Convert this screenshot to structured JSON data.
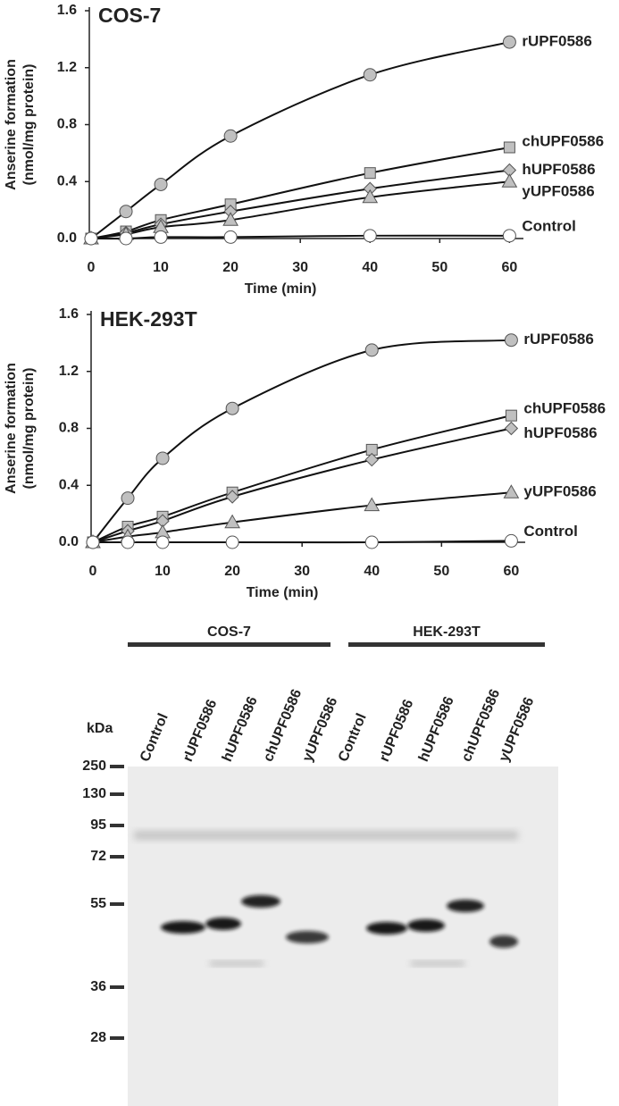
{
  "chart_data": [
    {
      "type": "line",
      "title": "COS-7",
      "xlabel": "Time (min)",
      "ylabel": [
        "Anserine formation",
        "(nmol/mg protein)"
      ],
      "x": [
        0,
        5,
        10,
        20,
        40,
        60
      ],
      "xlim": [
        0,
        62
      ],
      "xticks": [
        0,
        10,
        20,
        30,
        40,
        50,
        60
      ],
      "ylim": [
        0,
        1.6
      ],
      "yticks": [
        {
          "value": 0,
          "label": "0.0"
        },
        0.4,
        0.8,
        1.2,
        1.6
      ],
      "series": [
        {
          "name": "rUPF0586",
          "color": "#c0c0c0",
          "marker": "circle",
          "values": [
            0,
            0.19,
            0.38,
            0.72,
            1.15,
            1.38
          ]
        },
        {
          "name": "chUPF0586",
          "color": "#c0c0c0",
          "marker": "square",
          "values": [
            0,
            0.05,
            0.13,
            0.24,
            0.46,
            0.64
          ]
        },
        {
          "name": "hUPF0586",
          "color": "#c0c0c0",
          "marker": "diamond",
          "values": [
            0,
            0.04,
            0.1,
            0.19,
            0.35,
            0.48
          ]
        },
        {
          "name": "yUPF0586",
          "color": "#c0c0c0",
          "marker": "triangle",
          "values": [
            0,
            0.03,
            0.08,
            0.13,
            0.29,
            0.4
          ]
        },
        {
          "name": "Control",
          "color": "#ffffff",
          "marker": "circle",
          "values": [
            0,
            0,
            0.01,
            0.01,
            0.02,
            0.02
          ]
        }
      ]
    },
    {
      "type": "line",
      "title": "HEK-293T",
      "xlabel": "Time (min)",
      "ylabel": [
        "Anserine formation",
        "(nmol/mg protein)"
      ],
      "x": [
        0,
        5,
        10,
        20,
        40,
        60
      ],
      "xlim": [
        0,
        62
      ],
      "xticks": [
        0,
        10,
        20,
        30,
        40,
        50,
        60
      ],
      "ylim": [
        0,
        1.6
      ],
      "yticks": [
        {
          "value": 0,
          "label": "0.0"
        },
        0.4,
        0.8,
        1.2,
        1.6
      ],
      "series": [
        {
          "name": "rUPF0586",
          "color": "#c0c0c0",
          "marker": "circle",
          "values": [
            0,
            0.31,
            0.59,
            0.94,
            1.35,
            1.42
          ]
        },
        {
          "name": "chUPF0586",
          "color": "#c0c0c0",
          "marker": "square",
          "values": [
            0,
            0.11,
            0.18,
            0.35,
            0.65,
            0.89
          ]
        },
        {
          "name": "hUPF0586",
          "color": "#c0c0c0",
          "marker": "diamond",
          "values": [
            0,
            0.08,
            0.15,
            0.32,
            0.58,
            0.8
          ]
        },
        {
          "name": "yUPF0586",
          "color": "#c0c0c0",
          "marker": "triangle",
          "values": [
            0,
            0.04,
            0.07,
            0.14,
            0.26,
            0.35
          ]
        },
        {
          "name": "Control",
          "color": "#ffffff",
          "marker": "circle",
          "values": [
            0,
            0,
            0,
            0,
            0,
            0.01
          ]
        }
      ]
    }
  ],
  "blot": {
    "groups": [
      "COS-7",
      "HEK-293T"
    ],
    "lanes": [
      "Control",
      "rUPF0586",
      "hUPF0586",
      "chUPF0586",
      "yUPF0586",
      "Control",
      "rUPF0586",
      "hUPF0586",
      "chUPF0586",
      "yUPF0586"
    ],
    "unit": "kDa",
    "markers": [
      "250",
      "130",
      "95",
      "72",
      "55",
      "36",
      "28"
    ]
  }
}
